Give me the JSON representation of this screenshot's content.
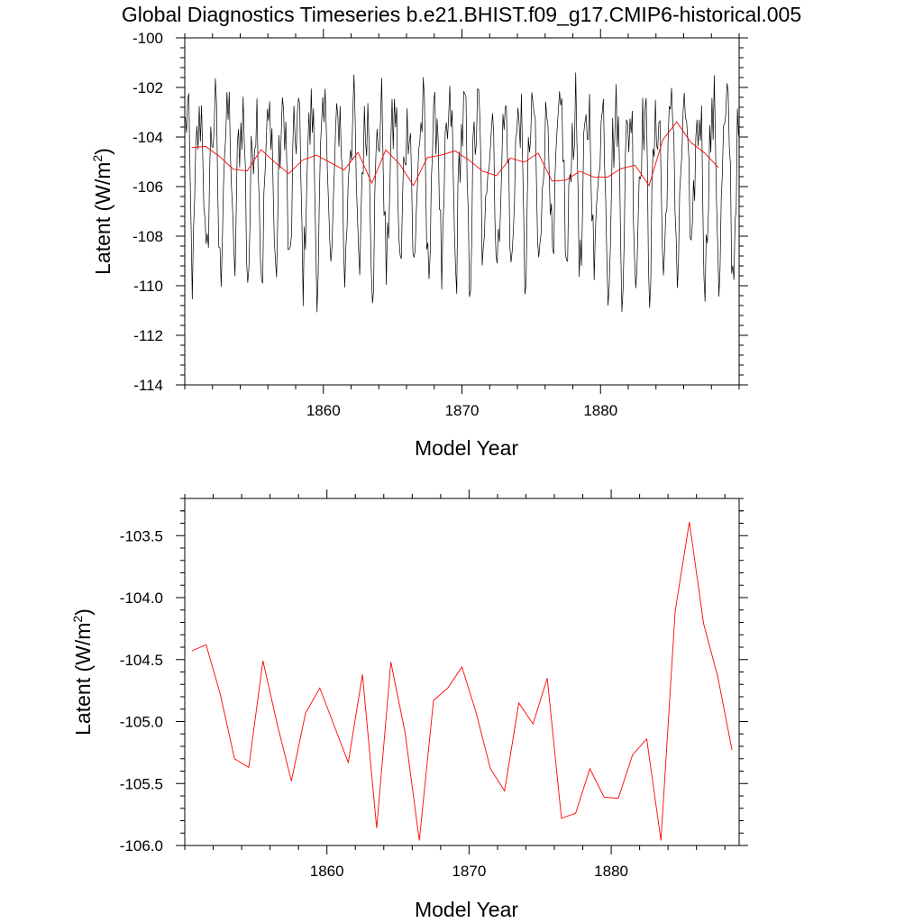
{
  "title": "Global Diagnostics Timeseries b.e21.BHIST.f09_g17.CMIP6-historical.005",
  "colors": {
    "monthly": "#000000",
    "annual": "#ff0000",
    "axis": "#000000"
  },
  "chart_data": [
    {
      "type": "line",
      "name": "monthly-and-annual",
      "xlabel": "Model Year",
      "ylabel_main": "Latent (W/m",
      "ylabel_sup": "2",
      "ylabel_end": ")",
      "xlim": [
        1850,
        1890
      ],
      "ylim": [
        -114,
        -100
      ],
      "xticks": [
        1860,
        1870,
        1880
      ],
      "xtick_labels": [
        "1860",
        "1870",
        "1880"
      ],
      "yticks": [
        -114,
        -112,
        -110,
        -108,
        -106,
        -104,
        -102,
        -100
      ],
      "ytick_labels": [
        "-114",
        "-112",
        "-110",
        "-108",
        "-106",
        "-104",
        "-102",
        "-100"
      ],
      "series": [
        {
          "name": "monthly",
          "color": "#000000",
          "generator": "monthly_cycle",
          "years_start": 1850,
          "n_months": 480
        },
        {
          "name": "annual",
          "color": "#ff0000",
          "x": [
            1850.5,
            1851.5,
            1852.5,
            1853.5,
            1854.5,
            1855.5,
            1856.5,
            1857.5,
            1858.5,
            1859.5,
            1860.5,
            1861.5,
            1862.5,
            1863.5,
            1864.5,
            1865.5,
            1866.5,
            1867.5,
            1868.5,
            1869.5,
            1870.5,
            1871.5,
            1872.5,
            1873.5,
            1874.5,
            1875.5,
            1876.5,
            1877.5,
            1878.5,
            1879.5,
            1880.5,
            1881.5,
            1882.5,
            1883.5,
            1884.5,
            1885.5,
            1886.5,
            1887.5,
            1888.5
          ],
          "values": [
            -104.43,
            -104.38,
            -104.78,
            -105.3,
            -105.37,
            -104.51,
            -105.02,
            -105.48,
            -104.93,
            -104.73,
            -105.03,
            -105.33,
            -104.62,
            -105.86,
            -104.52,
            -105.09,
            -105.96,
            -104.83,
            -104.73,
            -104.56,
            -104.93,
            -105.38,
            -105.56,
            -104.85,
            -105.02,
            -104.65,
            -105.78,
            -105.74,
            -105.38,
            -105.61,
            -105.62,
            -105.27,
            -105.14,
            -105.96,
            -104.11,
            -103.39,
            -104.21,
            -104.64,
            -105.23
          ]
        }
      ]
    },
    {
      "type": "line",
      "name": "annual-only",
      "xlabel": "Model Year",
      "ylabel_main": "Latent (W/m",
      "ylabel_sup": "2",
      "ylabel_end": ")",
      "xlim": [
        1850,
        1889
      ],
      "ylim": [
        -106.0,
        -103.2
      ],
      "xticks": [
        1860,
        1870,
        1880
      ],
      "xtick_labels": [
        "1860",
        "1870",
        "1880"
      ],
      "yticks": [
        -106.0,
        -105.5,
        -105.0,
        -104.5,
        -104.0,
        -103.5
      ],
      "ytick_labels": [
        "-106.0",
        "-105.5",
        "-105.0",
        "-104.5",
        "-104.0",
        "-103.5"
      ],
      "series": [
        {
          "name": "annual",
          "color": "#ff0000",
          "x": [
            1850.5,
            1851.5,
            1852.5,
            1853.5,
            1854.5,
            1855.5,
            1856.5,
            1857.5,
            1858.5,
            1859.5,
            1860.5,
            1861.5,
            1862.5,
            1863.5,
            1864.5,
            1865.5,
            1866.5,
            1867.5,
            1868.5,
            1869.5,
            1870.5,
            1871.5,
            1872.5,
            1873.5,
            1874.5,
            1875.5,
            1876.5,
            1877.5,
            1878.5,
            1879.5,
            1880.5,
            1881.5,
            1882.5,
            1883.5,
            1884.5,
            1885.5,
            1886.5,
            1887.5,
            1888.5
          ],
          "values": [
            -104.43,
            -104.38,
            -104.78,
            -105.3,
            -105.37,
            -104.51,
            -105.02,
            -105.48,
            -104.93,
            -104.73,
            -105.03,
            -105.33,
            -104.62,
            -105.86,
            -104.52,
            -105.09,
            -105.96,
            -104.83,
            -104.73,
            -104.56,
            -104.93,
            -105.38,
            -105.56,
            -104.85,
            -105.02,
            -104.65,
            -105.78,
            -105.74,
            -105.38,
            -105.61,
            -105.62,
            -105.27,
            -105.14,
            -105.96,
            -104.11,
            -103.39,
            -104.21,
            -104.64,
            -105.23
          ]
        }
      ]
    }
  ]
}
